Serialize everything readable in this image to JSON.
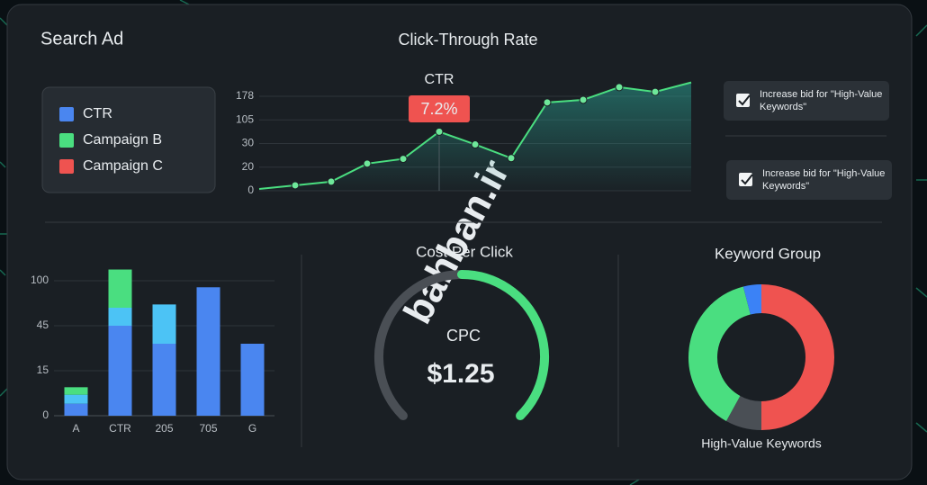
{
  "header": {
    "title": "Search Ad"
  },
  "legend": [
    {
      "name": "CTR",
      "color": "#4a86f0"
    },
    {
      "name": "Campaign B",
      "color": "#4ade80"
    },
    {
      "name": "Campaign C",
      "color": "#ef5350"
    }
  ],
  "notes": [
    "Increase bid for \"High-Value Keywords\"",
    "Increase bid for \"High-Value Keywords\""
  ],
  "watermark": "bahban.ir",
  "chart_data": [
    {
      "type": "line",
      "title": "Click-Through Rate",
      "annotations": [
        "CTR",
        "7.2%"
      ],
      "categories": [
        null,
        null,
        null,
        null,
        null,
        null,
        null,
        null,
        null,
        null,
        null,
        null,
        null
      ],
      "values": [
        1.5,
        4.6,
        7.7,
        21.5,
        23.5,
        67.5,
        29.6,
        23.8,
        159,
        167,
        209,
        193,
        225
      ],
      "color": "#4ade80",
      "ylim": [
        0,
        230
      ],
      "yticks": [
        0,
        20,
        30,
        105,
        178
      ],
      "grid": true
    },
    {
      "type": "bar",
      "categories": [
        "A",
        "CTR",
        "205",
        "705",
        "G"
      ],
      "series": [
        {
          "color": "#4a86f0",
          "values": [
            4,
            45,
            33,
            92,
            33
          ]
        },
        {
          "color": "#4cc3f5",
          "values": [
            3,
            22,
            38,
            null,
            null
          ]
        },
        {
          "color": "#4ade80",
          "values": [
            2.5,
            50,
            null,
            null,
            null
          ]
        }
      ],
      "ylim": [
        0,
        130
      ],
      "yticks": [
        0,
        15,
        45,
        100
      ],
      "grid": true
    },
    {
      "type": "gauge",
      "title": "Cost Per Click",
      "label": "CPC",
      "value": 1.25,
      "value_label": "$1.25",
      "ylim": [
        0,
        2.5
      ]
    },
    {
      "type": "pie",
      "title": "Keyword Group",
      "label": "High-Value Keywords",
      "values": [
        50,
        8,
        38,
        4
      ],
      "colors": [
        "#ef5350",
        "#4a4f55",
        "#4ade80",
        "#3b82f6"
      ]
    }
  ]
}
